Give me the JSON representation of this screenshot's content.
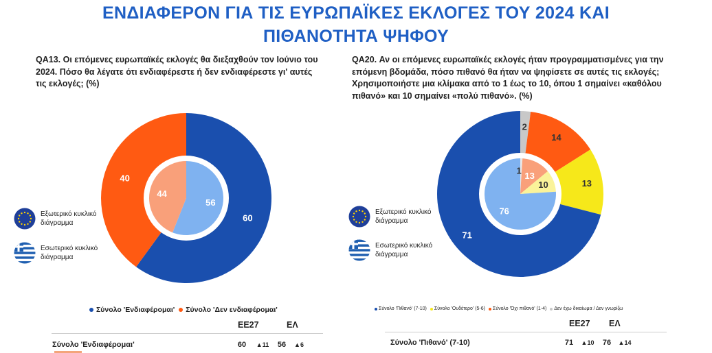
{
  "title_line1": "ΕΝΔΙΑΦΕΡΟΝ ΓΙΑ ΤΙΣ ΕΥΡΩΠΑΪΚΕΣ ΕΚΛΟΓΕΣ ΤΟΥ 2024 ΚΑΙ",
  "title_line2": "ΠΙΘΑΝΟΤΗΤΑ ΨΗΦΟΥ",
  "colors": {
    "title": "#1f5fc4",
    "outer_blue": "#1a4fae",
    "inner_blue": "#7fb2f0",
    "outer_orange": "#ff5a12",
    "inner_orange": "#f9a07a",
    "yellow": "#f6e81a",
    "inner_yellow": "#faf39a",
    "grey": "#c8c8c8",
    "inner_grey": "#e8e8e8"
  },
  "left": {
    "question": "QA13. Οι επόμενες ευρωπαϊκές εκλογές θα διεξαχθούν τον Ιούνιο του 2024. Πόσο θα λέγατε ότι ενδιαφέρεστε ή δεν ενδιαφέρεστε γι' αυτές τις εκλογές; (%)",
    "legend_outer": "Εξωτερικό κυκλικό διάγραμμα",
    "legend_inner": "Εσωτερικό κυκλικό διάγραμμα",
    "bottom_legend": [
      "Σύνολο 'Ενδιαφέρομαι'",
      "Σύνολο 'Δεν ενδιαφέρομαι'"
    ],
    "table": {
      "col1": "ΕΕ27",
      "col2": "ΕΛ",
      "row_label": "Σύνολο 'Ενδιαφέρομαι'",
      "eu_value": "60",
      "eu_delta": "▲11",
      "el_value": "56",
      "el_delta": "▲6"
    }
  },
  "right": {
    "question": "QA20. Αν οι επόμενες ευρωπαϊκές εκλογές ήταν προγραμματισμένες για την επόμενη βδομάδα, πόσο πιθανό θα ήταν να ψηφίσετε σε αυτές τις εκλογές; Χρησιμοποιήστε μια κλίμακα από το 1 έως το 10, όπου 1 σημαίνει «καθόλου πιθανό» και 10 σημαίνει «πολύ πιθανό». (%)",
    "legend_outer": "Εξωτερικό κυκλικό διάγραμμα",
    "legend_inner": "Εσωτερικό κυκλικό διάγραμμα",
    "bottom_legend": [
      "Σύνολο 'Πιθανό' (7-10)",
      "Σύνολο 'Ουδέτερο' (5-6)",
      "Σύνολο 'Όχι πιθανό' (1-4)",
      "Δεν έχω δικαίωμα / Δεν γνωρίζω"
    ],
    "table": {
      "col1": "ΕΕ27",
      "col2": "ΕΛ",
      "row_label": "Σύνολο 'Πιθανό' (7-10)",
      "eu_value": "71",
      "eu_delta": "▲10",
      "el_value": "76",
      "el_delta": "▲14"
    }
  },
  "chart_data": [
    {
      "type": "pie",
      "title": "QA13",
      "series": [
        {
          "name": "Εξωτερικό κυκλικό διάγραμμα",
          "categories": [
            "Σύνολο 'Ενδιαφέρομαι'",
            "Σύνολο 'Δεν ενδιαφέρομαι'"
          ],
          "values": [
            60,
            40
          ]
        },
        {
          "name": "Εσωτερικό κυκλικό διάγραμμα",
          "categories": [
            "Σύνολο 'Ενδιαφέρομαι'",
            "Σύνολο 'Δεν ενδιαφέρομαι'"
          ],
          "values": [
            56,
            44
          ]
        }
      ]
    },
    {
      "type": "pie",
      "title": "QA20",
      "series": [
        {
          "name": "Εξωτερικό κυκλικό διάγραμμα",
          "categories": [
            "Δεν έχω δικαίωμα / Δεν γνωρίζω",
            "Σύνολο 'Όχι πιθανό' (1-4)",
            "Σύνολο 'Ουδέτερο' (5-6)",
            "Σύνολο 'Πιθανό' (7-10)"
          ],
          "values": [
            2,
            14,
            13,
            71
          ]
        },
        {
          "name": "Εσωτερικό κυκλικό διάγραμμα",
          "categories": [
            "Δεν έχω δικαίωμα / Δεν γνωρίζω",
            "Σύνολο 'Όχι πιθανό' (1-4)",
            "Σύνολο 'Ουδέτερο' (5-6)",
            "Σύνολο 'Πιθανό' (7-10)"
          ],
          "values": [
            1,
            13,
            10,
            76
          ]
        }
      ]
    }
  ]
}
